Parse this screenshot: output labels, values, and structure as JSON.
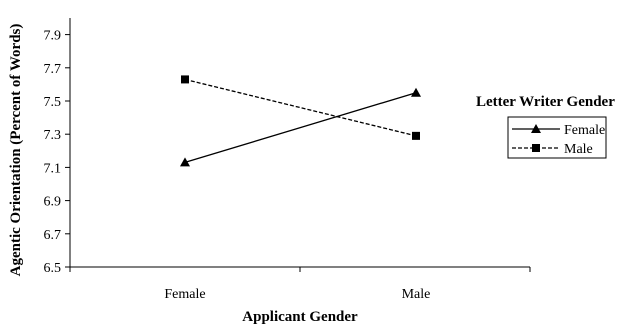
{
  "chart_data": {
    "type": "line",
    "title": "",
    "xlabel": "Applicant Gender",
    "ylabel": "Agentic Orientation (Percent of Words)",
    "categories": [
      "Female",
      "Male"
    ],
    "ylim": [
      6.5,
      8.0
    ],
    "yticks": [
      "6.5",
      "6.7",
      "6.9",
      "7.1",
      "7.3",
      "7.5",
      "7.7",
      "7.9"
    ],
    "grid": false,
    "legend": {
      "title": "Letter Writer Gender",
      "placement": "right"
    },
    "series": [
      {
        "name": "Female",
        "values": [
          7.13,
          7.55
        ],
        "marker": "triangle",
        "line": "solid",
        "color": "#000000"
      },
      {
        "name": "Male",
        "values": [
          7.63,
          7.29
        ],
        "marker": "square",
        "line": "dashed",
        "color": "#000000"
      }
    ]
  }
}
